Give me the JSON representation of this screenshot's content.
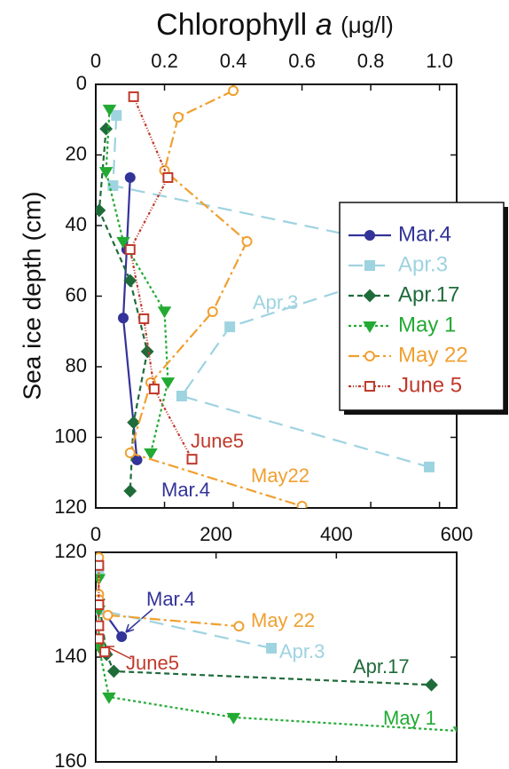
{
  "chart_data": [
    {
      "type": "line",
      "title": "Chlorophyll",
      "title_symbol": "a",
      "title_unit": "(μg/l)",
      "ylabel": "Sea ice depth (cm)",
      "xlim": [
        0,
        1.05
      ],
      "xticks": [
        0,
        0.2,
        0.4,
        0.6,
        0.8,
        {
          "value": 1,
          "label": "1.0"
        }
      ],
      "ylim": [
        0,
        120
      ],
      "yticks": [
        0,
        20,
        40,
        60,
        80,
        100,
        120
      ],
      "y_inverted": true,
      "legend": "right",
      "series": [
        {
          "name": "Mar.4",
          "color": "#33339a",
          "marker": "circle",
          "filled": true,
          "dash": "none",
          "x": [
            0.1,
            0.09,
            0.08,
            0.12
          ],
          "values": [
            26.4,
            46.8,
            66.2,
            106.4
          ]
        },
        {
          "name": "Apr.3",
          "color": "#9ed3e0",
          "marker": "square",
          "filled": true,
          "dash": "16 9",
          "x": [
            0.06,
            0.05,
            1.03,
            0.39,
            0.25,
            0.97
          ],
          "values": [
            8.8,
            28.7,
            48.6,
            68.7,
            88.3,
            108.4
          ]
        },
        {
          "name": "Apr.17",
          "color": "#1f6b3a",
          "marker": "diamond",
          "filled": true,
          "dash": "6 4",
          "x": [
            0.03,
            0.01,
            0.1,
            0.15,
            0.11,
            0.1
          ],
          "values": [
            12.6,
            35.7,
            55.6,
            75.7,
            95.8,
            115.2
          ]
        },
        {
          "name": "May 1",
          "color": "#22aa33",
          "marker": "triangle",
          "filled": true,
          "dash": "3 3",
          "x": [
            0.04,
            0.03,
            0.08,
            0.2,
            0.21,
            0.16
          ],
          "values": [
            7,
            24.7,
            44.5,
            64.2,
            84.3,
            104.4
          ]
        },
        {
          "name": "May 22",
          "color": "#f0a030",
          "marker": "circle",
          "filled": false,
          "dash": "12 4 3 4",
          "x": [
            0.4,
            0.24,
            0.2,
            0.44,
            0.34,
            0.16,
            0.1,
            0.6
          ],
          "values": [
            1.8,
            9.3,
            24.4,
            44.5,
            64.4,
            84.5,
            104.4,
            119.5
          ]
        },
        {
          "name": "June 5",
          "color": "#c0392b",
          "marker": "square",
          "filled": false,
          "dash": "3 2 1 2 1 2",
          "x": [
            0.11,
            0.21,
            0.1,
            0.14,
            0.17,
            0.28
          ],
          "values": [
            3.5,
            26.4,
            46.8,
            66.4,
            86.3,
            106.2
          ]
        }
      ],
      "annotations": [
        {
          "text": "Apr.3",
          "color": "#9ed3e0"
        },
        {
          "text": "June5",
          "color": "#c0392b"
        },
        {
          "text": "May22",
          "color": "#f0a030"
        },
        {
          "text": "Mar.4",
          "color": "#33339a"
        }
      ]
    },
    {
      "type": "line",
      "xlim": [
        0,
        600
      ],
      "xticks": [
        0,
        200,
        400,
        600
      ],
      "ylim": [
        120,
        160
      ],
      "yticks": [
        120,
        140,
        160
      ],
      "y_inverted": true,
      "series": [
        {
          "color": "#33339a",
          "marker": "circle",
          "filled": true,
          "dash": "none",
          "x": [
            5,
            5,
            43
          ],
          "values": [
            123,
            130,
            136.1
          ]
        },
        {
          "color": "#9ed3e0",
          "marker": "square",
          "filled": true,
          "dash": "16 9",
          "x": [
            5,
            5,
            292
          ],
          "values": [
            124,
            131,
            138.3
          ]
        },
        {
          "color": "#1f6b3a",
          "marker": "diamond",
          "filled": true,
          "dash": "6 4",
          "x": [
            5,
            18,
            30,
            558
          ],
          "values": [
            129,
            139.5,
            142.7,
            145.3
          ]
        },
        {
          "color": "#22aa33",
          "marker": "triangle",
          "filled": true,
          "dash": "3 3",
          "x": [
            5,
            5,
            5,
            22,
            229,
            605
          ],
          "values": [
            125,
            131,
            138,
            147.6,
            151.5,
            154.1
          ]
        },
        {
          "color": "#f0a030",
          "marker": "circle",
          "filled": false,
          "dash": "12 4 3 4",
          "x": [
            5,
            5,
            5,
            20,
            238
          ],
          "values": [
            121,
            128,
            129,
            132,
            134.1
          ]
        },
        {
          "color": "#c0392b",
          "marker": "square",
          "filled": false,
          "dash": "3 2 1 2 1 2",
          "x": [
            5,
            5,
            5,
            5,
            15
          ],
          "values": [
            122.5,
            130,
            134,
            136.5,
            139
          ]
        }
      ],
      "annotations": [
        {
          "text": "Mar.4",
          "color": "#33339a"
        },
        {
          "text": "May 22",
          "color": "#f0a030"
        },
        {
          "text": "Apr.3",
          "color": "#9ed3e0"
        },
        {
          "text": "June5",
          "color": "#c0392b"
        },
        {
          "text": "Apr.17",
          "color": "#1f6b3a"
        },
        {
          "text": "May 1",
          "color": "#22aa33"
        }
      ]
    }
  ]
}
